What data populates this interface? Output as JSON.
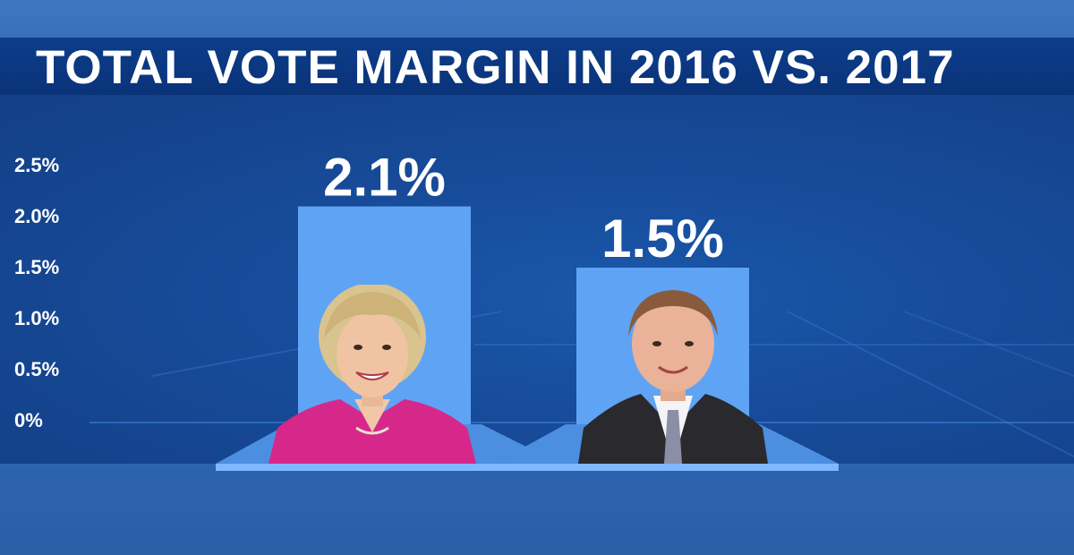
{
  "title": "TOTAL VOTE MARGIN IN 2016 VS. 2017",
  "chart_data": {
    "type": "bar",
    "title": "TOTAL VOTE MARGIN IN 2016 VS. 2017",
    "categories": [
      "",
      ""
    ],
    "values": [
      2.1,
      1.5
    ],
    "value_labels": [
      "2.1%",
      "1.5%"
    ],
    "yticks": [
      "2.5%",
      "2.0%",
      "1.5%",
      "1.0%",
      "0.5%",
      "0%"
    ],
    "ytick_values": [
      2.5,
      2.0,
      1.5,
      1.0,
      0.5,
      0
    ],
    "ylim": [
      0,
      2.5
    ],
    "xlabel": "",
    "ylabel": "",
    "grid": false,
    "bar_color": "#5fa3f5"
  },
  "photos": [
    {
      "icon": "hillary-clinton-portrait",
      "suit_color": "#d6288a"
    },
    {
      "icon": "doug-jones-portrait",
      "suit_color": "#2a2a2e"
    }
  ]
}
